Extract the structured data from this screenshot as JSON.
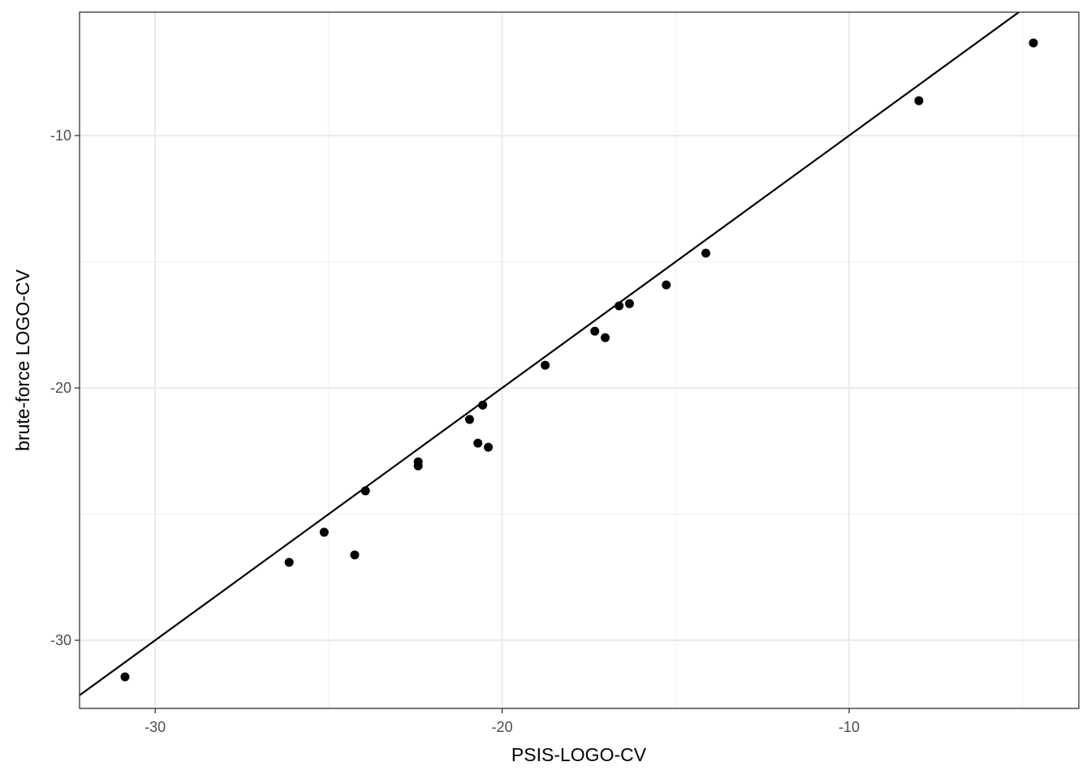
{
  "chart_data": {
    "type": "scatter",
    "x_label": "PSIS-LOGO-CV",
    "y_label": "brute-force LOGO-CV",
    "x": [
      -30.87,
      -26.14,
      -25.13,
      -24.25,
      -23.94,
      -22.42,
      -22.42,
      -20.94,
      -20.7,
      -20.56,
      -20.4,
      -18.76,
      -17.33,
      -17.03,
      -16.63,
      -16.33,
      -15.27,
      -14.13,
      -7.99,
      -4.69
    ],
    "values": [
      -31.45,
      -26.91,
      -25.72,
      -26.62,
      -24.08,
      -22.93,
      -23.09,
      -21.25,
      -22.19,
      -20.68,
      -22.35,
      -19.1,
      -17.75,
      -18.01,
      -16.75,
      -16.66,
      -15.92,
      -14.66,
      -8.62,
      -6.33
    ],
    "color": "#000000",
    "xlim": [
      -32.18,
      -3.38
    ],
    "ylim": [
      -32.7,
      -5.11
    ],
    "xticks": [
      -30,
      -20,
      -10
    ],
    "yticks": [
      -30,
      -20,
      -10
    ],
    "xminor": [
      -25,
      -15,
      -5
    ],
    "yminor": [
      -25,
      -15
    ],
    "grid": true,
    "reference_line": {
      "slope": 1,
      "intercept": 0
    }
  }
}
